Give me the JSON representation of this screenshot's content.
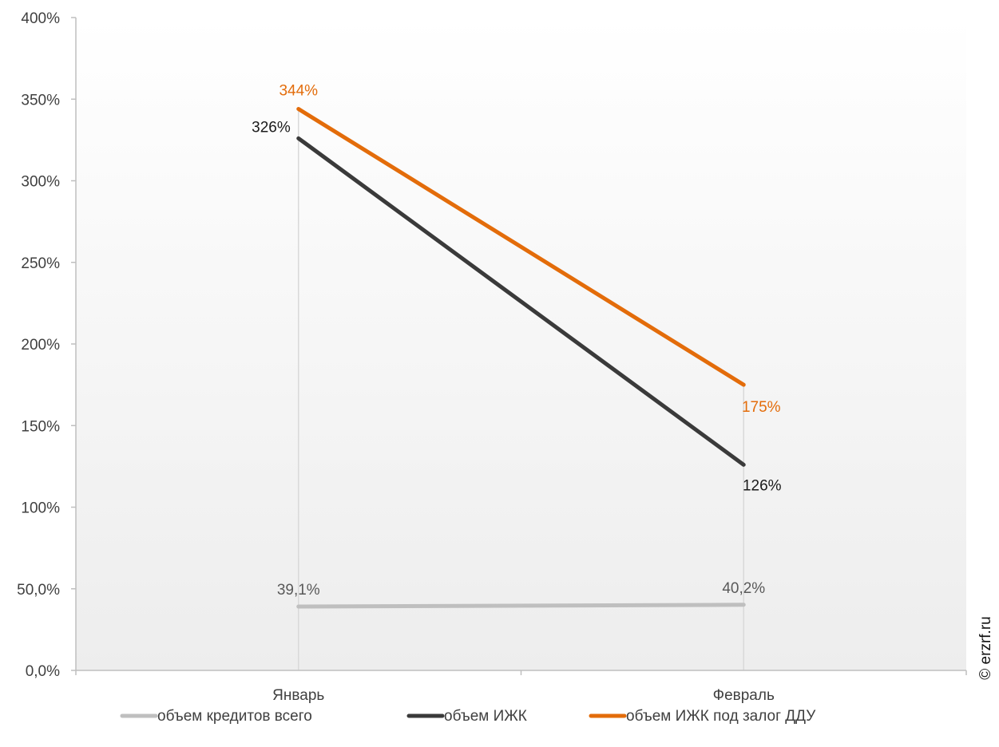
{
  "chart_data": {
    "type": "line",
    "categories": [
      "Январь",
      "Февраль"
    ],
    "series": [
      {
        "name": "объем кредитов всего",
        "color": "#bfbfbf",
        "values": [
          39.1,
          40.2
        ],
        "labels": [
          "39,1%",
          "40,2%"
        ]
      },
      {
        "name": "объем ИЖК",
        "color": "#3a3a3a",
        "values": [
          326,
          126
        ],
        "labels": [
          "326%",
          "126%"
        ]
      },
      {
        "name": "объем ИЖК под залог ДДУ",
        "color": "#e36c0a",
        "values": [
          344,
          175
        ],
        "labels": [
          "344%",
          "175%"
        ]
      }
    ],
    "ylim": [
      0,
      400
    ],
    "yticks": [
      0,
      50,
      100,
      150,
      200,
      250,
      300,
      350,
      400
    ],
    "ytick_labels": [
      "0,0%",
      "50,0%",
      "100%",
      "150%",
      "200%",
      "250%",
      "300%",
      "350%",
      "400%"
    ],
    "grid": false,
    "legend": "bottom",
    "background": "light-gray-gradient"
  },
  "watermark": "© erzrf.ru"
}
